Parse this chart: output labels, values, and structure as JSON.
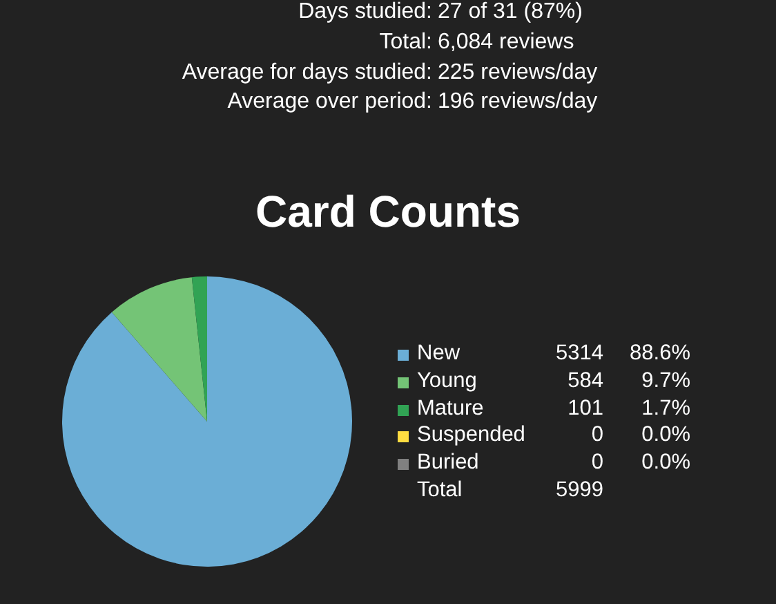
{
  "chart_data": {
    "type": "pie",
    "title": "Card Counts",
    "categories": [
      "New",
      "Young",
      "Mature",
      "Suspended",
      "Buried"
    ],
    "values": [
      5314,
      584,
      101,
      0,
      0
    ],
    "colors": [
      "#6baed6",
      "#74c476",
      "#31a354",
      "#ffdc41",
      "#808080"
    ],
    "value_labels": [
      "5314",
      "584",
      "101",
      "0",
      "0"
    ],
    "totals": [
      "5999"
    ],
    "legend": "right",
    "annotations": [
      "Days studied: 27 of 31 (87%)",
      "Total: 6,084 reviews",
      "Average for days studied: 225 reviews/day",
      "Average over period: 196 reviews/day",
      "Total",
      {
        "text": "88.6%",
        "x": "New"
      },
      {
        "text": "9.7%",
        "x": "Young"
      },
      {
        "text": "1.7%",
        "x": "Mature"
      },
      {
        "text": "0.0%",
        "x": "Suspended"
      },
      {
        "text": "0.0%",
        "x": "Buried"
      }
    ]
  }
}
